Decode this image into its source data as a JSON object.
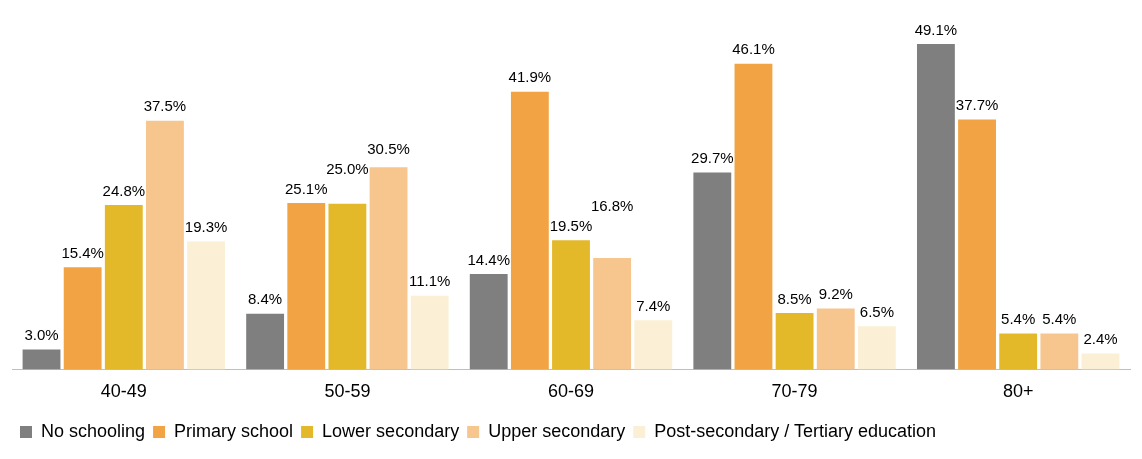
{
  "chart_data": {
    "type": "bar",
    "categories": [
      "40-49",
      "50-59",
      "60-69",
      "70-79",
      "80+"
    ],
    "series": [
      {
        "name": "No schooling",
        "color": "#7f7f7f",
        "values": [
          3.0,
          8.4,
          14.4,
          29.7,
          49.1
        ],
        "value_labels": [
          "3.0%",
          "8.4%",
          "14.4%",
          "29.7%",
          "49.1%"
        ]
      },
      {
        "name": "Primary school",
        "color": "#f2a343",
        "values": [
          15.4,
          25.1,
          41.9,
          46.1,
          37.7
        ],
        "value_labels": [
          "15.4%",
          "25.1%",
          "41.9%",
          "46.1%",
          "37.7%"
        ]
      },
      {
        "name": "Lower secondary",
        "color": "#e3b92a",
        "values": [
          24.8,
          25.0,
          19.5,
          8.5,
          5.4
        ],
        "value_labels": [
          "24.8%",
          "25.0%",
          "19.5%",
          "8.5%",
          "5.4%"
        ]
      },
      {
        "name": "Upper secondary",
        "color": "#f7c68e",
        "values": [
          37.5,
          30.5,
          16.8,
          9.2,
          5.4
        ],
        "value_labels": [
          "37.5%",
          "30.5%",
          "16.8%",
          "9.2%",
          "5.4%"
        ]
      },
      {
        "name": "Post-secondary / Tertiary education",
        "color": "#fbf0d5",
        "values": [
          19.3,
          11.1,
          7.4,
          6.5,
          2.4
        ],
        "value_labels": [
          "19.3%",
          "11.1%",
          "7.4%",
          "6.5%",
          "2.4%"
        ]
      }
    ],
    "legend": "bottom",
    "grid": false
  }
}
